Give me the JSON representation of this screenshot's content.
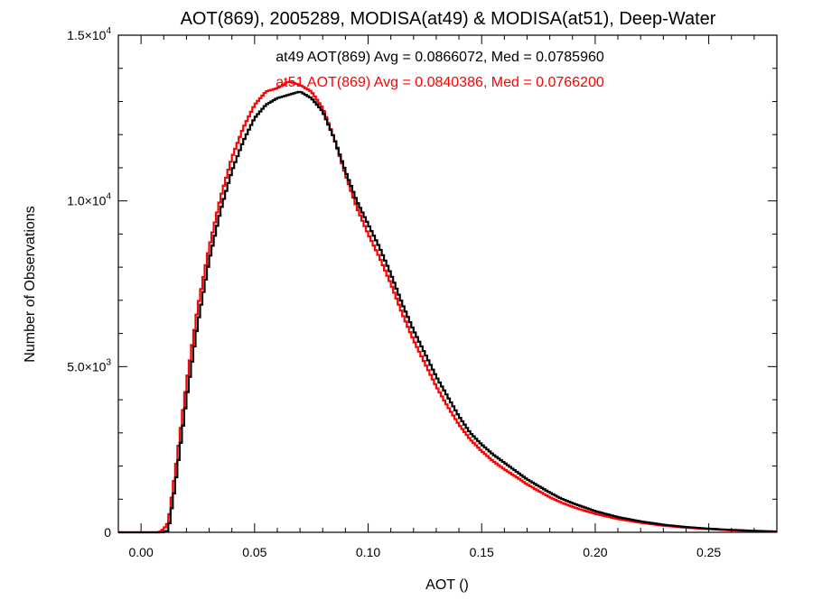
{
  "chart_data": {
    "type": "line",
    "title": "AOT(869), 2005289, MODISA(at49) & MODISA(at51), Deep-Water",
    "xlabel": "AOT ()",
    "ylabel": "Number of Observations",
    "xlim": [
      -0.01,
      0.28
    ],
    "ylim": [
      0,
      15000
    ],
    "x_ticks": [
      "0.00",
      "0.05",
      "0.10",
      "0.15",
      "0.20",
      "0.25"
    ],
    "y_ticks": [
      {
        "value": 0,
        "mantissa": "0",
        "exp": ""
      },
      {
        "value": 5000,
        "mantissa": "5.0×10",
        "exp": "3"
      },
      {
        "value": 10000,
        "mantissa": "1.0×10",
        "exp": "4"
      },
      {
        "value": 15000,
        "mantissa": "1.5×10",
        "exp": "4"
      }
    ],
    "annotations": [
      {
        "text": "at49 AOT(869) Avg = 0.0866072, Med = 0.0785960",
        "color": "#000000"
      },
      {
        "text": "at51 AOT(869) Avg = 0.0840386, Med = 0.0766200",
        "color": "#ff0000"
      }
    ],
    "series": [
      {
        "color": "#000000",
        "x": [
          -0.01,
          0.0,
          0.005,
          0.008,
          0.01,
          0.012,
          0.015,
          0.02,
          0.025,
          0.03,
          0.035,
          0.04,
          0.045,
          0.05,
          0.055,
          0.06,
          0.065,
          0.07,
          0.075,
          0.08,
          0.085,
          0.09,
          0.095,
          0.1,
          0.105,
          0.11,
          0.115,
          0.12,
          0.125,
          0.13,
          0.135,
          0.14,
          0.145,
          0.15,
          0.155,
          0.16,
          0.165,
          0.17,
          0.175,
          0.18,
          0.185,
          0.19,
          0.195,
          0.2,
          0.21,
          0.22,
          0.23,
          0.24,
          0.25,
          0.26,
          0.27,
          0.28
        ],
        "y": [
          0,
          0,
          0,
          0,
          0,
          50,
          1400,
          4000,
          6300,
          8200,
          9700,
          10900,
          11800,
          12500,
          12900,
          13100,
          13200,
          13300,
          13100,
          12700,
          11900,
          10900,
          10000,
          9300,
          8600,
          7800,
          6900,
          6100,
          5400,
          4700,
          4100,
          3500,
          3000,
          2650,
          2350,
          2100,
          1850,
          1600,
          1400,
          1200,
          1020,
          880,
          760,
          640,
          460,
          330,
          230,
          160,
          110,
          75,
          45,
          25
        ]
      },
      {
        "color": "#ff0000",
        "x": [
          -0.01,
          0.0,
          0.005,
          0.008,
          0.01,
          0.012,
          0.015,
          0.02,
          0.025,
          0.03,
          0.035,
          0.04,
          0.045,
          0.05,
          0.055,
          0.06,
          0.065,
          0.07,
          0.075,
          0.08,
          0.085,
          0.09,
          0.095,
          0.1,
          0.105,
          0.11,
          0.115,
          0.12,
          0.125,
          0.13,
          0.135,
          0.14,
          0.145,
          0.15,
          0.155,
          0.16,
          0.165,
          0.17,
          0.175,
          0.18,
          0.185,
          0.19,
          0.195,
          0.2,
          0.21,
          0.22,
          0.23,
          0.24,
          0.25,
          0.26,
          0.27,
          0.28
        ],
        "y": [
          0,
          0,
          0,
          0,
          100,
          300,
          1800,
          4500,
          6800,
          8600,
          10100,
          11300,
          12200,
          12900,
          13300,
          13400,
          13600,
          13500,
          13300,
          12800,
          11900,
          10800,
          9800,
          9000,
          8300,
          7500,
          6600,
          5800,
          5100,
          4400,
          3800,
          3250,
          2800,
          2450,
          2150,
          1900,
          1680,
          1450,
          1250,
          1060,
          900,
          770,
          660,
          560,
          400,
          290,
          200,
          140,
          95,
          60,
          35,
          20
        ]
      }
    ]
  }
}
